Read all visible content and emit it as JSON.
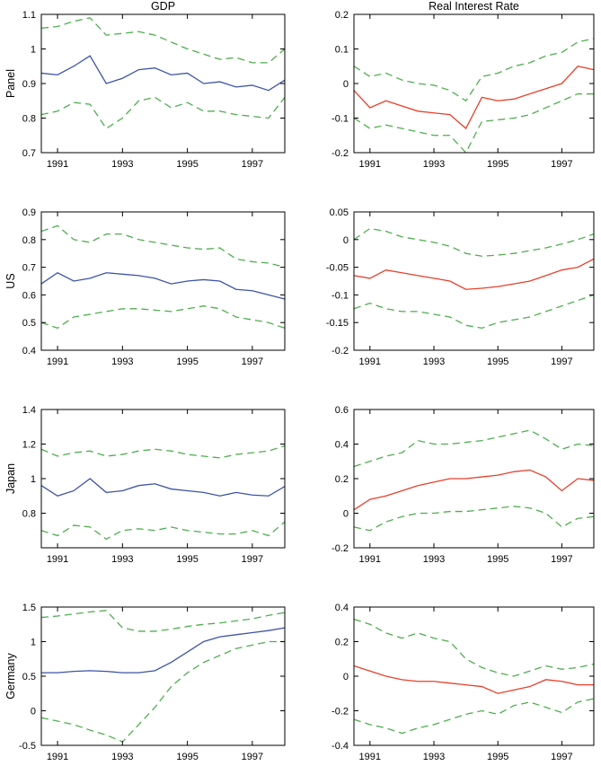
{
  "figure": {
    "column_titles": [
      "GDP",
      "Real Interest Rate"
    ],
    "row_labels": [
      "Panel",
      "US",
      "Japan",
      "Germany"
    ]
  },
  "colors": {
    "gdp_line": "#3d54a8",
    "rir_line": "#e8402c",
    "band_line": "#4fae4f",
    "axis": "#000000"
  },
  "chart_data": [
    {
      "type": "line",
      "name": "panel-gdp",
      "row_label": "Panel",
      "column_title": "GDP",
      "xlim": [
        1990.5,
        1998
      ],
      "ylim": [
        0.7,
        1.1
      ],
      "xticks": [
        1991,
        1993,
        1995,
        1997
      ],
      "yticks": [
        0.7,
        0.8,
        0.9,
        1,
        1.1
      ],
      "x": [
        1990.5,
        1991,
        1991.5,
        1992,
        1992.5,
        1993,
        1993.5,
        1994,
        1994.5,
        1995,
        1995.5,
        1996,
        1996.5,
        1997,
        1997.5,
        1998
      ],
      "series": [
        {
          "name": "upper-band",
          "style": "dashed",
          "color_key": "band_line",
          "values": [
            1.06,
            1.065,
            1.08,
            1.09,
            1.04,
            1.045,
            1.05,
            1.04,
            1.02,
            1.0,
            0.985,
            0.97,
            0.975,
            0.96,
            0.96,
            1.0
          ]
        },
        {
          "name": "lower-band",
          "style": "dashed",
          "color_key": "band_line",
          "values": [
            0.81,
            0.82,
            0.845,
            0.84,
            0.77,
            0.8,
            0.85,
            0.86,
            0.83,
            0.845,
            0.82,
            0.82,
            0.81,
            0.805,
            0.8,
            0.86
          ]
        },
        {
          "name": "estimate",
          "style": "solid",
          "color_key": "gdp_line",
          "values": [
            0.93,
            0.925,
            0.95,
            0.98,
            0.9,
            0.915,
            0.94,
            0.945,
            0.925,
            0.93,
            0.9,
            0.905,
            0.89,
            0.895,
            0.88,
            0.91
          ]
        }
      ]
    },
    {
      "type": "line",
      "name": "panel-real-interest-rate",
      "row_label": "Panel",
      "column_title": "Real Interest Rate",
      "xlim": [
        1990.5,
        1998
      ],
      "ylim": [
        -0.2,
        0.2
      ],
      "xticks": [
        1991,
        1993,
        1995,
        1997
      ],
      "yticks": [
        -0.2,
        -0.1,
        0,
        0.1,
        0.2
      ],
      "x": [
        1990.5,
        1991,
        1991.5,
        1992,
        1992.5,
        1993,
        1993.5,
        1994,
        1994.5,
        1995,
        1995.5,
        1996,
        1996.5,
        1997,
        1997.5,
        1998
      ],
      "series": [
        {
          "name": "upper-band",
          "style": "dashed",
          "color_key": "band_line",
          "values": [
            0.05,
            0.02,
            0.03,
            0.01,
            0.0,
            -0.005,
            -0.02,
            -0.05,
            0.02,
            0.03,
            0.05,
            0.06,
            0.08,
            0.09,
            0.12,
            0.13
          ]
        },
        {
          "name": "lower-band",
          "style": "dashed",
          "color_key": "band_line",
          "values": [
            -0.1,
            -0.13,
            -0.12,
            -0.13,
            -0.14,
            -0.15,
            -0.15,
            -0.2,
            -0.11,
            -0.105,
            -0.1,
            -0.09,
            -0.07,
            -0.05,
            -0.03,
            -0.03
          ]
        },
        {
          "name": "estimate",
          "style": "solid",
          "color_key": "rir_line",
          "values": [
            -0.02,
            -0.07,
            -0.05,
            -0.065,
            -0.08,
            -0.085,
            -0.09,
            -0.13,
            -0.04,
            -0.05,
            -0.045,
            -0.03,
            -0.015,
            0.0,
            0.05,
            0.04
          ]
        }
      ]
    },
    {
      "type": "line",
      "name": "us-gdp",
      "row_label": "US",
      "column_title": "GDP",
      "xlim": [
        1990.5,
        1998
      ],
      "ylim": [
        0.4,
        0.9
      ],
      "xticks": [
        1991,
        1993,
        1995,
        1997
      ],
      "yticks": [
        0.4,
        0.5,
        0.6,
        0.7,
        0.8,
        0.9
      ],
      "x": [
        1990.5,
        1991,
        1991.5,
        1992,
        1992.5,
        1993,
        1993.5,
        1994,
        1994.5,
        1995,
        1995.5,
        1996,
        1996.5,
        1997,
        1997.5,
        1998
      ],
      "series": [
        {
          "name": "upper-band",
          "style": "dashed",
          "color_key": "band_line",
          "values": [
            0.83,
            0.85,
            0.8,
            0.79,
            0.82,
            0.82,
            0.8,
            0.79,
            0.78,
            0.77,
            0.765,
            0.77,
            0.73,
            0.72,
            0.715,
            0.7
          ]
        },
        {
          "name": "lower-band",
          "style": "dashed",
          "color_key": "band_line",
          "values": [
            0.5,
            0.48,
            0.52,
            0.53,
            0.54,
            0.55,
            0.55,
            0.545,
            0.54,
            0.55,
            0.56,
            0.55,
            0.52,
            0.51,
            0.5,
            0.48
          ]
        },
        {
          "name": "estimate",
          "style": "solid",
          "color_key": "gdp_line",
          "values": [
            0.64,
            0.68,
            0.65,
            0.66,
            0.68,
            0.675,
            0.67,
            0.66,
            0.64,
            0.65,
            0.655,
            0.65,
            0.62,
            0.615,
            0.6,
            0.585
          ]
        }
      ]
    },
    {
      "type": "line",
      "name": "us-real-interest-rate",
      "row_label": "US",
      "column_title": "Real Interest Rate",
      "xlim": [
        1990.5,
        1998
      ],
      "ylim": [
        -0.2,
        0.05
      ],
      "xticks": [
        1991,
        1993,
        1995,
        1997
      ],
      "yticks": [
        -0.2,
        -0.15,
        -0.1,
        -0.05,
        0,
        0.05
      ],
      "x": [
        1990.5,
        1991,
        1991.5,
        1992,
        1992.5,
        1993,
        1993.5,
        1994,
        1994.5,
        1995,
        1995.5,
        1996,
        1996.5,
        1997,
        1997.5,
        1998
      ],
      "series": [
        {
          "name": "upper-band",
          "style": "dashed",
          "color_key": "band_line",
          "values": [
            0.0,
            0.02,
            0.015,
            0.005,
            0.0,
            -0.005,
            -0.012,
            -0.025,
            -0.03,
            -0.028,
            -0.025,
            -0.02,
            -0.015,
            -0.008,
            0.0,
            0.01
          ]
        },
        {
          "name": "lower-band",
          "style": "dashed",
          "color_key": "band_line",
          "values": [
            -0.125,
            -0.115,
            -0.125,
            -0.13,
            -0.13,
            -0.135,
            -0.14,
            -0.155,
            -0.16,
            -0.15,
            -0.145,
            -0.14,
            -0.13,
            -0.12,
            -0.11,
            -0.1
          ]
        },
        {
          "name": "estimate",
          "style": "solid",
          "color_key": "rir_line",
          "values": [
            -0.065,
            -0.07,
            -0.055,
            -0.06,
            -0.065,
            -0.07,
            -0.075,
            -0.09,
            -0.088,
            -0.085,
            -0.08,
            -0.075,
            -0.065,
            -0.055,
            -0.05,
            -0.035
          ]
        }
      ]
    },
    {
      "type": "line",
      "name": "japan-gdp",
      "row_label": "Japan",
      "column_title": "GDP",
      "xlim": [
        1990.5,
        1998
      ],
      "ylim": [
        0.6,
        1.4
      ],
      "xticks": [
        1991,
        1993,
        1995,
        1997
      ],
      "yticks": [
        0.8,
        1,
        1.2,
        1.4
      ],
      "x": [
        1990.5,
        1991,
        1991.5,
        1992,
        1992.5,
        1993,
        1993.5,
        1994,
        1994.5,
        1995,
        1995.5,
        1996,
        1996.5,
        1997,
        1997.5,
        1998
      ],
      "series": [
        {
          "name": "upper-band",
          "style": "dashed",
          "color_key": "band_line",
          "values": [
            1.17,
            1.13,
            1.15,
            1.16,
            1.13,
            1.14,
            1.16,
            1.17,
            1.16,
            1.14,
            1.13,
            1.12,
            1.14,
            1.15,
            1.16,
            1.19
          ]
        },
        {
          "name": "lower-band",
          "style": "dashed",
          "color_key": "band_line",
          "values": [
            0.7,
            0.67,
            0.73,
            0.72,
            0.65,
            0.7,
            0.71,
            0.7,
            0.72,
            0.7,
            0.69,
            0.68,
            0.68,
            0.7,
            0.67,
            0.75
          ]
        },
        {
          "name": "estimate",
          "style": "solid",
          "color_key": "gdp_line",
          "values": [
            0.96,
            0.9,
            0.93,
            1.0,
            0.92,
            0.93,
            0.96,
            0.97,
            0.94,
            0.93,
            0.92,
            0.9,
            0.92,
            0.905,
            0.9,
            0.955
          ]
        }
      ]
    },
    {
      "type": "line",
      "name": "japan-real-interest-rate",
      "row_label": "Japan",
      "column_title": "Real Interest Rate",
      "xlim": [
        1990.5,
        1998
      ],
      "ylim": [
        -0.2,
        0.6
      ],
      "xticks": [
        1991,
        1993,
        1995,
        1997
      ],
      "yticks": [
        -0.2,
        0,
        0.2,
        0.4,
        0.6
      ],
      "x": [
        1990.5,
        1991,
        1991.5,
        1992,
        1992.5,
        1993,
        1993.5,
        1994,
        1994.5,
        1995,
        1995.5,
        1996,
        1996.5,
        1997,
        1997.5,
        1998
      ],
      "series": [
        {
          "name": "upper-band",
          "style": "dashed",
          "color_key": "band_line",
          "values": [
            0.27,
            0.3,
            0.33,
            0.35,
            0.42,
            0.4,
            0.4,
            0.41,
            0.42,
            0.44,
            0.46,
            0.48,
            0.43,
            0.37,
            0.4,
            0.39
          ]
        },
        {
          "name": "lower-band",
          "style": "dashed",
          "color_key": "band_line",
          "values": [
            -0.08,
            -0.1,
            -0.05,
            -0.02,
            0.0,
            0.0,
            0.01,
            0.01,
            0.02,
            0.03,
            0.04,
            0.03,
            0.0,
            -0.08,
            -0.03,
            -0.02
          ]
        },
        {
          "name": "estimate",
          "style": "solid",
          "color_key": "rir_line",
          "values": [
            0.02,
            0.08,
            0.1,
            0.13,
            0.16,
            0.18,
            0.2,
            0.2,
            0.21,
            0.22,
            0.24,
            0.25,
            0.21,
            0.13,
            0.2,
            0.19
          ]
        }
      ]
    },
    {
      "type": "line",
      "name": "germany-gdp",
      "row_label": "Germany",
      "column_title": "GDP",
      "xlim": [
        1990.5,
        1998
      ],
      "ylim": [
        -0.5,
        1.5
      ],
      "xticks": [
        1991,
        1993,
        1995,
        1997
      ],
      "yticks": [
        -0.5,
        0,
        0.5,
        1,
        1.5
      ],
      "x": [
        1990.5,
        1991,
        1991.5,
        1992,
        1992.5,
        1993,
        1993.5,
        1994,
        1994.5,
        1995,
        1995.5,
        1996,
        1996.5,
        1997,
        1997.5,
        1998
      ],
      "series": [
        {
          "name": "upper-band",
          "style": "dashed",
          "color_key": "band_line",
          "values": [
            1.35,
            1.37,
            1.4,
            1.43,
            1.45,
            1.2,
            1.15,
            1.15,
            1.18,
            1.22,
            1.25,
            1.27,
            1.3,
            1.33,
            1.38,
            1.42
          ]
        },
        {
          "name": "lower-band",
          "style": "dashed",
          "color_key": "band_line",
          "values": [
            -0.1,
            -0.15,
            -0.2,
            -0.28,
            -0.35,
            -0.45,
            -0.2,
            0.05,
            0.35,
            0.55,
            0.7,
            0.8,
            0.9,
            0.95,
            1.0,
            1.0
          ]
        },
        {
          "name": "estimate",
          "style": "solid",
          "color_key": "gdp_line",
          "values": [
            0.55,
            0.55,
            0.57,
            0.58,
            0.57,
            0.55,
            0.55,
            0.58,
            0.7,
            0.85,
            1.0,
            1.07,
            1.1,
            1.13,
            1.16,
            1.2
          ]
        }
      ]
    },
    {
      "type": "line",
      "name": "germany-real-interest-rate",
      "row_label": "Germany",
      "column_title": "Real Interest Rate",
      "xlim": [
        1990.5,
        1998
      ],
      "ylim": [
        -0.4,
        0.4
      ],
      "xticks": [
        1991,
        1993,
        1995,
        1997
      ],
      "yticks": [
        -0.4,
        -0.2,
        0,
        0.2,
        0.4
      ],
      "x": [
        1990.5,
        1991,
        1991.5,
        1992,
        1992.5,
        1993,
        1993.5,
        1994,
        1994.5,
        1995,
        1995.5,
        1996,
        1996.5,
        1997,
        1997.5,
        1998
      ],
      "series": [
        {
          "name": "upper-band",
          "style": "dashed",
          "color_key": "band_line",
          "values": [
            0.33,
            0.3,
            0.25,
            0.22,
            0.25,
            0.22,
            0.2,
            0.1,
            0.05,
            0.02,
            0.0,
            0.03,
            0.06,
            0.04,
            0.05,
            0.07
          ]
        },
        {
          "name": "lower-band",
          "style": "dashed",
          "color_key": "band_line",
          "values": [
            -0.25,
            -0.28,
            -0.3,
            -0.33,
            -0.3,
            -0.28,
            -0.25,
            -0.22,
            -0.2,
            -0.22,
            -0.17,
            -0.15,
            -0.18,
            -0.21,
            -0.15,
            -0.13
          ]
        },
        {
          "name": "estimate",
          "style": "solid",
          "color_key": "rir_line",
          "values": [
            0.06,
            0.03,
            0.0,
            -0.02,
            -0.03,
            -0.03,
            -0.04,
            -0.05,
            -0.06,
            -0.1,
            -0.08,
            -0.06,
            -0.02,
            -0.03,
            -0.05,
            -0.05
          ]
        }
      ]
    }
  ]
}
